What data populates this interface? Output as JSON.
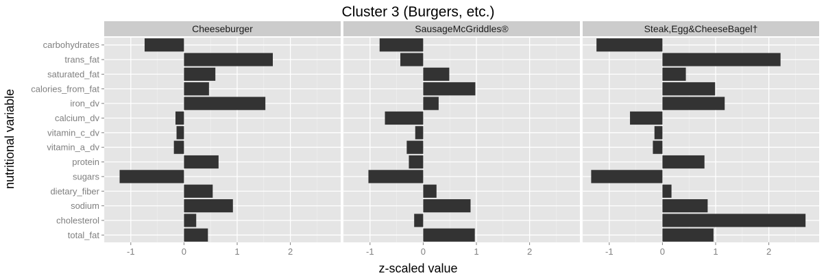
{
  "chart_data": {
    "type": "bar",
    "orientation": "horizontal",
    "title": "Cluster 3 (Burgers, etc.)",
    "xlabel": "z-scaled value",
    "ylabel": "nutritional variable",
    "xlim": [
      -1.5,
      2.85
    ],
    "x_ticks": [
      -1,
      0,
      1,
      2
    ],
    "grid": true,
    "categories": [
      "carbohydrates",
      "trans_fat",
      "saturated_fat",
      "calories_from_fat",
      "iron_dv",
      "calcium_dv",
      "vitamin_c_dv",
      "vitamin_a_dv",
      "protein",
      "sugars",
      "dietary_fiber",
      "sodium",
      "cholesterol",
      "total_fat"
    ],
    "panels": [
      {
        "name": "Cheeseburger",
        "values": [
          -0.74,
          1.67,
          0.59,
          0.47,
          1.53,
          -0.16,
          -0.14,
          -0.19,
          0.65,
          -1.21,
          0.54,
          0.92,
          0.23,
          0.45
        ]
      },
      {
        "name": "SausageMcGriddles®",
        "values": [
          -0.82,
          -0.43,
          0.49,
          0.98,
          0.29,
          -0.72,
          -0.15,
          -0.31,
          -0.27,
          -1.03,
          0.25,
          0.89,
          -0.17,
          0.97
        ]
      },
      {
        "name": "Steak,Egg&CheeseBagel†",
        "values": [
          -1.24,
          2.22,
          0.44,
          0.99,
          1.17,
          -0.61,
          -0.15,
          -0.18,
          0.79,
          -1.34,
          0.17,
          0.85,
          2.69,
          0.96
        ]
      }
    ]
  }
}
